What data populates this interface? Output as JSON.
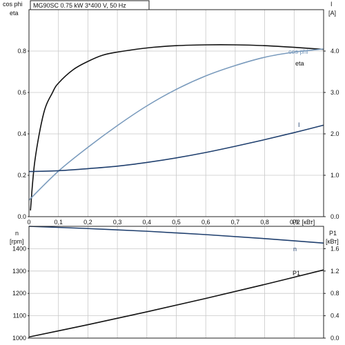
{
  "title": "MG90SC   0.75 kW   3*400 V, 50 Hz",
  "chart_data": [
    {
      "type": "line",
      "title": "MG90SC   0.75 kW   3*400 V, 50 Hz",
      "left_axis_label_line1": "cos phi",
      "left_axis_label_line2": "eta",
      "right_axis_label_line1": "I",
      "right_axis_label_line2": "[A]",
      "xlabel": "P2 [кВт]",
      "xlim": [
        0,
        1.0
      ],
      "ylim_left": [
        0,
        1.0
      ],
      "ylim_right": [
        0,
        5.0
      ],
      "x_ticks": [
        "0",
        "0,1",
        "0,2",
        "0,3",
        "0,4",
        "0,5",
        "0,6",
        "0,7",
        "0,8",
        "0,9"
      ],
      "x_tick_values": [
        0,
        0.1,
        0.2,
        0.3,
        0.4,
        0.5,
        0.6,
        0.7,
        0.8,
        0.9
      ],
      "y_left_ticks": [
        "0.0",
        "0.2",
        "0.4",
        "0.6",
        "0.8"
      ],
      "y_left_tick_values": [
        0,
        0.2,
        0.4,
        0.6,
        0.8
      ],
      "y_right_ticks": [
        "0.0",
        "1.0",
        "2.0",
        "3.0",
        "4.0"
      ],
      "y_right_tick_values": [
        0,
        1,
        2,
        3,
        4
      ],
      "grid": true,
      "series": [
        {
          "name": "eta",
          "axis": "left",
          "color": "#111111",
          "x": [
            0.005,
            0.02,
            0.05,
            0.08,
            0.1,
            0.15,
            0.2,
            0.25,
            0.3,
            0.4,
            0.5,
            0.6,
            0.7,
            0.8,
            0.9,
            1.0
          ],
          "y": [
            0.03,
            0.27,
            0.5,
            0.6,
            0.645,
            0.71,
            0.75,
            0.78,
            0.795,
            0.815,
            0.826,
            0.83,
            0.83,
            0.826,
            0.818,
            0.808
          ]
        },
        {
          "name": "cos phi",
          "axis": "left",
          "color": "#7a9bbd",
          "x": [
            0,
            0.1,
            0.2,
            0.3,
            0.4,
            0.5,
            0.6,
            0.7,
            0.8,
            0.9,
            1.0
          ],
          "y": [
            0.08,
            0.22,
            0.335,
            0.44,
            0.535,
            0.615,
            0.68,
            0.73,
            0.77,
            0.795,
            0.81
          ]
        },
        {
          "name": "I",
          "axis": "right",
          "color": "#1f3f6e",
          "x": [
            0,
            0.1,
            0.2,
            0.3,
            0.4,
            0.5,
            0.6,
            0.7,
            0.8,
            0.9,
            1.0
          ],
          "y": [
            1.09,
            1.11,
            1.16,
            1.22,
            1.31,
            1.42,
            1.55,
            1.7,
            1.86,
            2.03,
            2.21
          ]
        }
      ]
    },
    {
      "type": "line",
      "left_axis_label_line1": "n",
      "left_axis_label_line2": "[rpm]",
      "right_axis_label_line1": "P1",
      "right_axis_label_line2": "[кВт]",
      "xlim": [
        0,
        1.0
      ],
      "ylim_left": [
        1000,
        1500
      ],
      "ylim_right": [
        0,
        2.0
      ],
      "y_left_ticks": [
        "1000",
        "1100",
        "1200",
        "1300",
        "1400"
      ],
      "y_left_tick_values": [
        1000,
        1100,
        1200,
        1300,
        1400
      ],
      "y_right_ticks": [
        "0.0",
        "0.4",
        "0.8",
        "1.2",
        "1.6"
      ],
      "y_right_tick_values": [
        0,
        0.4,
        0.8,
        1.2,
        1.6
      ],
      "grid": true,
      "series": [
        {
          "name": "n",
          "axis": "left",
          "color": "#1f3f6e",
          "x": [
            0,
            0.2,
            0.4,
            0.6,
            0.8,
            1.0
          ],
          "y": [
            1500,
            1490,
            1478,
            1463,
            1445,
            1425
          ]
        },
        {
          "name": "P1",
          "axis": "right",
          "color": "#111111",
          "x": [
            0,
            0.2,
            0.4,
            0.6,
            0.8,
            1.0
          ],
          "y": [
            0.02,
            0.24,
            0.47,
            0.71,
            0.96,
            1.22
          ]
        }
      ]
    }
  ]
}
